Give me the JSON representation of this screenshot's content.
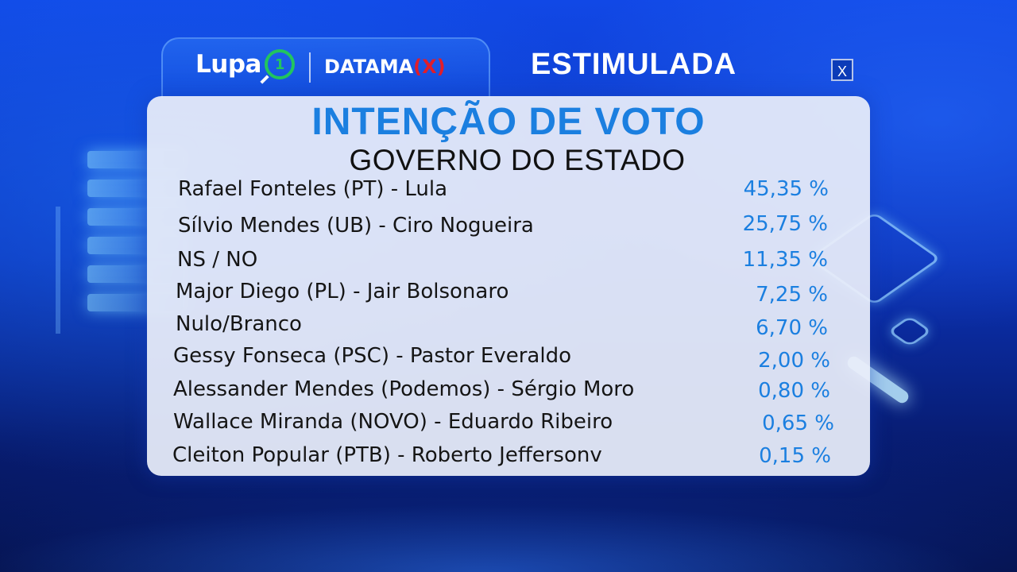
{
  "header": {
    "brand_lupa": "Lupa",
    "brand_lupa_badge": "1",
    "brand_datamax": "DATAMA",
    "brand_datamax_x": "(X)",
    "title": "ESTIMULADA",
    "close_label": "X"
  },
  "card": {
    "title": "INTENÇÃO DE VOTO",
    "subtitle": "GOVERNO DO ESTADO",
    "rows": [
      {
        "name": "Rafael Fonteles (PT) - Lula",
        "pct": "45,35 %"
      },
      {
        "name": "Sílvio Mendes (UB) - Ciro Nogueira",
        "pct": "25,75 %"
      },
      {
        "name": "NS / NO",
        "pct": "11,35 %"
      },
      {
        "name": "Major Diego (PL) - Jair Bolsonaro",
        "pct": "7,25 %"
      },
      {
        "name": "Nulo/Branco",
        "pct": "6,70 %"
      },
      {
        "name": "Gessy Fonseca (PSC) - Pastor Everaldo",
        "pct": "2,00 %"
      },
      {
        "name": "Alessander Mendes (Podemos) - Sérgio Moro",
        "pct": "0,80 %"
      },
      {
        "name": "Wallace Miranda (NOVO) - Eduardo Ribeiro",
        "pct": "0,65 %"
      },
      {
        "name": "Cleiton Popular (PTB) - Roberto Jeffersonv",
        "pct": "0,15 %"
      }
    ]
  },
  "colors": {
    "accent_blue": "#1b7fe0",
    "brand_green": "#22c55e",
    "brand_red": "#e11d2a",
    "card_bg": "#e9eefa"
  }
}
